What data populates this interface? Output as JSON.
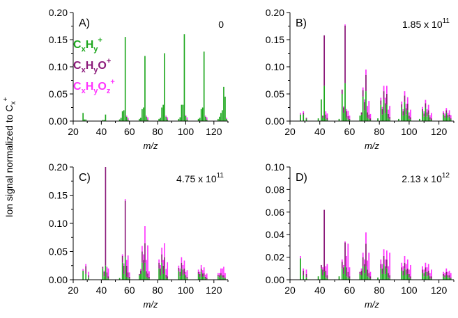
{
  "figure": {
    "ylabel": "Ion signal normalized to C",
    "ylabel_sub": "x",
    "ylabel_sup": "+"
  },
  "legend": [
    {
      "base": "C",
      "s1": "x",
      "m1": "H",
      "s2": "y",
      "tail": "",
      "s3": "",
      "sup": "+",
      "color": "#1ea71e"
    },
    {
      "base": "C",
      "s1": "x",
      "m1": "H",
      "s2": "y",
      "tail": "O",
      "s3": "",
      "sup": "+",
      "color": "#8b1a7a"
    },
    {
      "base": "C",
      "s1": "x",
      "m1": "H",
      "s2": "y",
      "tail": "O",
      "s3": "z",
      "sup": "+",
      "color": "#ff33ff"
    }
  ],
  "chart_data": [
    {
      "type": "bar",
      "panel": "A)",
      "annotation_main": "0",
      "annotation_exp": "",
      "xlabel": "m/z",
      "xlim": [
        20,
        130
      ],
      "ylim": [
        0,
        0.2
      ],
      "xticks": [
        "20",
        "40",
        "60",
        "80",
        "100",
        "120"
      ],
      "yticks": [
        "0.00",
        "0.05",
        "0.10",
        "0.15",
        "0.20"
      ],
      "stacked": true,
      "series_order": [
        "CxHy+",
        "CxHyO+",
        "CxHyOz+"
      ],
      "bars": [
        [
          27,
          0.015,
          0,
          0
        ],
        [
          28,
          0.003,
          0,
          0
        ],
        [
          29,
          0.003,
          0,
          0
        ],
        [
          41,
          0.002,
          0,
          0
        ],
        [
          42,
          0.002,
          0,
          0
        ],
        [
          43,
          0.012,
          0,
          0
        ],
        [
          53,
          0.003,
          0,
          0
        ],
        [
          54,
          0.006,
          0,
          0
        ],
        [
          55,
          0.018,
          0,
          0
        ],
        [
          56,
          0.02,
          0,
          0
        ],
        [
          57,
          0.155,
          0,
          0
        ],
        [
          58,
          0.008,
          0,
          0.002
        ],
        [
          59,
          0.002,
          0.001,
          0.003
        ],
        [
          67,
          0.004,
          0,
          0
        ],
        [
          68,
          0.006,
          0,
          0
        ],
        [
          69,
          0.022,
          0,
          0
        ],
        [
          70,
          0.025,
          0,
          0
        ],
        [
          71,
          0.12,
          0,
          0
        ],
        [
          72,
          0.008,
          0,
          0.002
        ],
        [
          73,
          0.002,
          0.001,
          0.004
        ],
        [
          81,
          0.004,
          0,
          0
        ],
        [
          82,
          0.006,
          0,
          0
        ],
        [
          83,
          0.025,
          0,
          0
        ],
        [
          84,
          0.03,
          0,
          0
        ],
        [
          85,
          0.125,
          0,
          0
        ],
        [
          86,
          0.008,
          0,
          0.002
        ],
        [
          87,
          0.002,
          0.001,
          0.004
        ],
        [
          95,
          0.004,
          0,
          0
        ],
        [
          96,
          0.007,
          0,
          0
        ],
        [
          97,
          0.03,
          0,
          0
        ],
        [
          98,
          0.03,
          0,
          0
        ],
        [
          99,
          0.16,
          0,
          0
        ],
        [
          100,
          0.009,
          0,
          0.002
        ],
        [
          101,
          0.002,
          0.001,
          0.004
        ],
        [
          109,
          0.004,
          0,
          0
        ],
        [
          110,
          0.006,
          0,
          0
        ],
        [
          111,
          0.022,
          0,
          0
        ],
        [
          112,
          0.025,
          0,
          0
        ],
        [
          113,
          0.128,
          0,
          0
        ],
        [
          114,
          0.008,
          0,
          0.002
        ],
        [
          115,
          0.002,
          0.001,
          0.004
        ],
        [
          123,
          0.004,
          0,
          0
        ],
        [
          124,
          0.008,
          0,
          0
        ],
        [
          125,
          0.015,
          0,
          0
        ],
        [
          126,
          0.02,
          0,
          0
        ],
        [
          127,
          0.063,
          0,
          0
        ],
        [
          128,
          0.045,
          0,
          0
        ],
        [
          129,
          0.004,
          0,
          0.002
        ]
      ]
    },
    {
      "type": "bar",
      "panel": "B)",
      "annotation_main": "1.85 x 10",
      "annotation_exp": "11",
      "xlabel": "m/z",
      "xlim": [
        20,
        130
      ],
      "ylim": [
        0,
        0.2
      ],
      "xticks": [
        "20",
        "40",
        "60",
        "80",
        "100",
        "120"
      ],
      "yticks": [
        "0.00",
        "0.05",
        "0.10",
        "0.15",
        "0.20"
      ],
      "stacked": true,
      "series_order": [
        "CxHy+",
        "CxHyO+",
        "CxHyOz+"
      ],
      "bars": [
        [
          27,
          0.012,
          0,
          0.003
        ],
        [
          29,
          0.012,
          0.003,
          0.003
        ],
        [
          31,
          0.004,
          0.002,
          0
        ],
        [
          39,
          0.005,
          0,
          0
        ],
        [
          41,
          0.04,
          0,
          0
        ],
        [
          42,
          0.006,
          0.004,
          0
        ],
        [
          43,
          0.065,
          0.093,
          0
        ],
        [
          44,
          0.004,
          0.008,
          0.006
        ],
        [
          45,
          0.002,
          0.004,
          0.008
        ],
        [
          53,
          0.004,
          0,
          0
        ],
        [
          55,
          0.05,
          0.008,
          0
        ],
        [
          56,
          0.015,
          0.01,
          0.002
        ],
        [
          57,
          0.07,
          0.106,
          0.002
        ],
        [
          58,
          0.006,
          0.012,
          0.004
        ],
        [
          59,
          0.003,
          0.006,
          0.01
        ],
        [
          60,
          0.002,
          0.002,
          0.006
        ],
        [
          67,
          0.01,
          0,
          0
        ],
        [
          68,
          0.012,
          0.004,
          0
        ],
        [
          69,
          0.045,
          0.012,
          0.005
        ],
        [
          70,
          0.02,
          0.015,
          0.005
        ],
        [
          71,
          0.055,
          0.03,
          0.01
        ],
        [
          72,
          0.006,
          0.01,
          0.012
        ],
        [
          73,
          0.004,
          0.008,
          0.025
        ],
        [
          74,
          0.002,
          0.003,
          0.008
        ],
        [
          79,
          0.005,
          0,
          0
        ],
        [
          81,
          0.03,
          0.008,
          0.005
        ],
        [
          82,
          0.012,
          0.01,
          0.004
        ],
        [
          83,
          0.04,
          0.015,
          0.01
        ],
        [
          84,
          0.015,
          0.018,
          0.01
        ],
        [
          85,
          0.03,
          0.02,
          0.015
        ],
        [
          86,
          0.005,
          0.008,
          0.008
        ],
        [
          87,
          0.003,
          0.005,
          0.02
        ],
        [
          93,
          0.004,
          0,
          0
        ],
        [
          95,
          0.025,
          0.006,
          0.005
        ],
        [
          96,
          0.01,
          0.008,
          0.004
        ],
        [
          97,
          0.035,
          0.012,
          0.008
        ],
        [
          98,
          0.012,
          0.012,
          0.008
        ],
        [
          99,
          0.02,
          0.012,
          0.012
        ],
        [
          100,
          0.004,
          0.006,
          0.006
        ],
        [
          101,
          0.003,
          0.004,
          0.014
        ],
        [
          107,
          0.004,
          0,
          0
        ],
        [
          109,
          0.018,
          0.004,
          0.004
        ],
        [
          110,
          0.008,
          0.006,
          0.004
        ],
        [
          111,
          0.025,
          0.008,
          0.006
        ],
        [
          112,
          0.008,
          0.008,
          0.006
        ],
        [
          113,
          0.012,
          0.008,
          0.01
        ],
        [
          114,
          0.003,
          0.004,
          0.004
        ],
        [
          115,
          0.002,
          0.003,
          0.01
        ],
        [
          123,
          0.012,
          0.003,
          0.003
        ],
        [
          124,
          0.006,
          0.004,
          0.004
        ],
        [
          125,
          0.015,
          0.005,
          0.004
        ],
        [
          126,
          0.006,
          0.005,
          0.004
        ],
        [
          127,
          0.008,
          0.004,
          0.008
        ],
        [
          128,
          0.003,
          0.002,
          0.006
        ]
      ]
    },
    {
      "type": "bar",
      "panel": "C)",
      "annotation_main": "4.75 x 10",
      "annotation_exp": "11",
      "xlabel": "m/z",
      "xlim": [
        20,
        130
      ],
      "ylim": [
        0,
        0.2
      ],
      "xticks": [
        "20",
        "40",
        "60",
        "80",
        "100",
        "120"
      ],
      "yticks": [
        "0.00",
        "0.05",
        "0.10",
        "0.15",
        "0.20"
      ],
      "stacked": true,
      "series_order": [
        "CxHy+",
        "CxHyO+",
        "CxHyOz+"
      ],
      "bars": [
        [
          27,
          0.016,
          0,
          0.003
        ],
        [
          29,
          0.01,
          0.014,
          0.004
        ],
        [
          31,
          0.004,
          0.004,
          0.006
        ],
        [
          41,
          0.02,
          0.003,
          0
        ],
        [
          42,
          0.006,
          0.008,
          0.002
        ],
        [
          43,
          0.025,
          0.175,
          0
        ],
        [
          44,
          0.003,
          0.01,
          0.01
        ],
        [
          45,
          0.002,
          0.004,
          0.014
        ],
        [
          53,
          0.003,
          0,
          0
        ],
        [
          55,
          0.03,
          0.012,
          0.003
        ],
        [
          56,
          0.01,
          0.015,
          0.004
        ],
        [
          57,
          0.04,
          0.1,
          0.003
        ],
        [
          58,
          0.005,
          0.02,
          0.01
        ],
        [
          59,
          0.003,
          0.01,
          0.03
        ],
        [
          60,
          0.002,
          0.003,
          0.008
        ],
        [
          67,
          0.008,
          0.002,
          0
        ],
        [
          68,
          0.01,
          0.006,
          0.003
        ],
        [
          69,
          0.03,
          0.02,
          0.01
        ],
        [
          70,
          0.015,
          0.02,
          0.01
        ],
        [
          71,
          0.03,
          0.035,
          0.03
        ],
        [
          72,
          0.005,
          0.01,
          0.02
        ],
        [
          73,
          0.003,
          0.008,
          0.05
        ],
        [
          74,
          0.002,
          0.003,
          0.01
        ],
        [
          81,
          0.02,
          0.01,
          0.006
        ],
        [
          82,
          0.008,
          0.012,
          0.006
        ],
        [
          83,
          0.03,
          0.015,
          0.012
        ],
        [
          84,
          0.01,
          0.015,
          0.01
        ],
        [
          85,
          0.02,
          0.02,
          0.025
        ],
        [
          86,
          0.003,
          0.006,
          0.01
        ],
        [
          87,
          0.002,
          0.004,
          0.025
        ],
        [
          95,
          0.015,
          0.006,
          0.004
        ],
        [
          96,
          0.006,
          0.008,
          0.006
        ],
        [
          97,
          0.02,
          0.01,
          0.01
        ],
        [
          98,
          0.008,
          0.01,
          0.008
        ],
        [
          99,
          0.01,
          0.01,
          0.014
        ],
        [
          100,
          0.003,
          0.005,
          0.006
        ],
        [
          101,
          0.002,
          0.003,
          0.012
        ],
        [
          109,
          0.01,
          0.004,
          0.004
        ],
        [
          110,
          0.005,
          0.005,
          0.004
        ],
        [
          111,
          0.014,
          0.006,
          0.006
        ],
        [
          112,
          0.005,
          0.006,
          0.006
        ],
        [
          113,
          0.006,
          0.006,
          0.01
        ],
        [
          114,
          0.002,
          0.003,
          0.004
        ],
        [
          115,
          0.001,
          0.002,
          0.008
        ],
        [
          123,
          0.006,
          0.003,
          0.003
        ],
        [
          124,
          0.004,
          0.004,
          0.004
        ],
        [
          125,
          0.008,
          0.004,
          0.008
        ],
        [
          126,
          0.004,
          0.004,
          0.012
        ],
        [
          127,
          0.004,
          0.004,
          0.015
        ],
        [
          128,
          0.002,
          0.002,
          0.008
        ]
      ]
    },
    {
      "type": "bar",
      "panel": "D)",
      "annotation_main": "2.13 x 10",
      "annotation_exp": "12",
      "xlabel": "m/z",
      "xlim": [
        20,
        130
      ],
      "ylim": [
        0,
        0.1
      ],
      "xticks": [
        "20",
        "40",
        "60",
        "80",
        "100",
        "120"
      ],
      "yticks": [
        "0.00",
        "0.02",
        "0.04",
        "0.06",
        "0.08",
        "0.10"
      ],
      "stacked": true,
      "series_order": [
        "CxHy+",
        "CxHyO+",
        "CxHyOz+"
      ],
      "bars": [
        [
          27,
          0.019,
          0,
          0.002
        ],
        [
          29,
          0.004,
          0.004,
          0.002
        ],
        [
          31,
          0.002,
          0.003,
          0.004
        ],
        [
          39,
          0.003,
          0,
          0
        ],
        [
          41,
          0.01,
          0.003,
          0
        ],
        [
          42,
          0.004,
          0.005,
          0.002
        ],
        [
          43,
          0.007,
          0.055,
          0
        ],
        [
          44,
          0.002,
          0.006,
          0.004
        ],
        [
          45,
          0.001,
          0.003,
          0.01
        ],
        [
          53,
          0.003,
          0,
          0
        ],
        [
          55,
          0.01,
          0.006,
          0.002
        ],
        [
          56,
          0.005,
          0.006,
          0.002
        ],
        [
          57,
          0.012,
          0.021,
          0.001
        ],
        [
          58,
          0.003,
          0.008,
          0.01
        ],
        [
          59,
          0.002,
          0.005,
          0.025
        ],
        [
          60,
          0.001,
          0.002,
          0.008
        ],
        [
          67,
          0.005,
          0.002,
          0
        ],
        [
          68,
          0.004,
          0.004,
          0.002
        ],
        [
          69,
          0.012,
          0.008,
          0.004
        ],
        [
          70,
          0.006,
          0.008,
          0.004
        ],
        [
          71,
          0.012,
          0.02,
          0.01
        ],
        [
          72,
          0.003,
          0.006,
          0.008
        ],
        [
          73,
          0.002,
          0.004,
          0.018
        ],
        [
          74,
          0.001,
          0.002,
          0.004
        ],
        [
          79,
          0.002,
          0,
          0
        ],
        [
          81,
          0.01,
          0.004,
          0.004
        ],
        [
          82,
          0.005,
          0.005,
          0.004
        ],
        [
          83,
          0.014,
          0.007,
          0.006
        ],
        [
          84,
          0.005,
          0.007,
          0.006
        ],
        [
          85,
          0.01,
          0.008,
          0.008
        ],
        [
          86,
          0.002,
          0.004,
          0.006
        ],
        [
          87,
          0.001,
          0.003,
          0.02
        ],
        [
          95,
          0.008,
          0.003,
          0.004
        ],
        [
          96,
          0.004,
          0.004,
          0.004
        ],
        [
          97,
          0.01,
          0.005,
          0.006
        ],
        [
          98,
          0.004,
          0.005,
          0.005
        ],
        [
          99,
          0.005,
          0.005,
          0.008
        ],
        [
          100,
          0.002,
          0.003,
          0.004
        ],
        [
          101,
          0.001,
          0.002,
          0.01
        ],
        [
          109,
          0.006,
          0.003,
          0.003
        ],
        [
          110,
          0.003,
          0.003,
          0.003
        ],
        [
          111,
          0.007,
          0.004,
          0.004
        ],
        [
          112,
          0.003,
          0.004,
          0.004
        ],
        [
          113,
          0.004,
          0.004,
          0.006
        ],
        [
          114,
          0.001,
          0.002,
          0.003
        ],
        [
          115,
          0.001,
          0.002,
          0.006
        ],
        [
          123,
          0.003,
          0.002,
          0.002
        ],
        [
          124,
          0.002,
          0.002,
          0.002
        ],
        [
          125,
          0.004,
          0.003,
          0.003
        ],
        [
          126,
          0.002,
          0.002,
          0.003
        ],
        [
          127,
          0.002,
          0.002,
          0.004
        ],
        [
          128,
          0.001,
          0.001,
          0.004
        ]
      ]
    }
  ]
}
